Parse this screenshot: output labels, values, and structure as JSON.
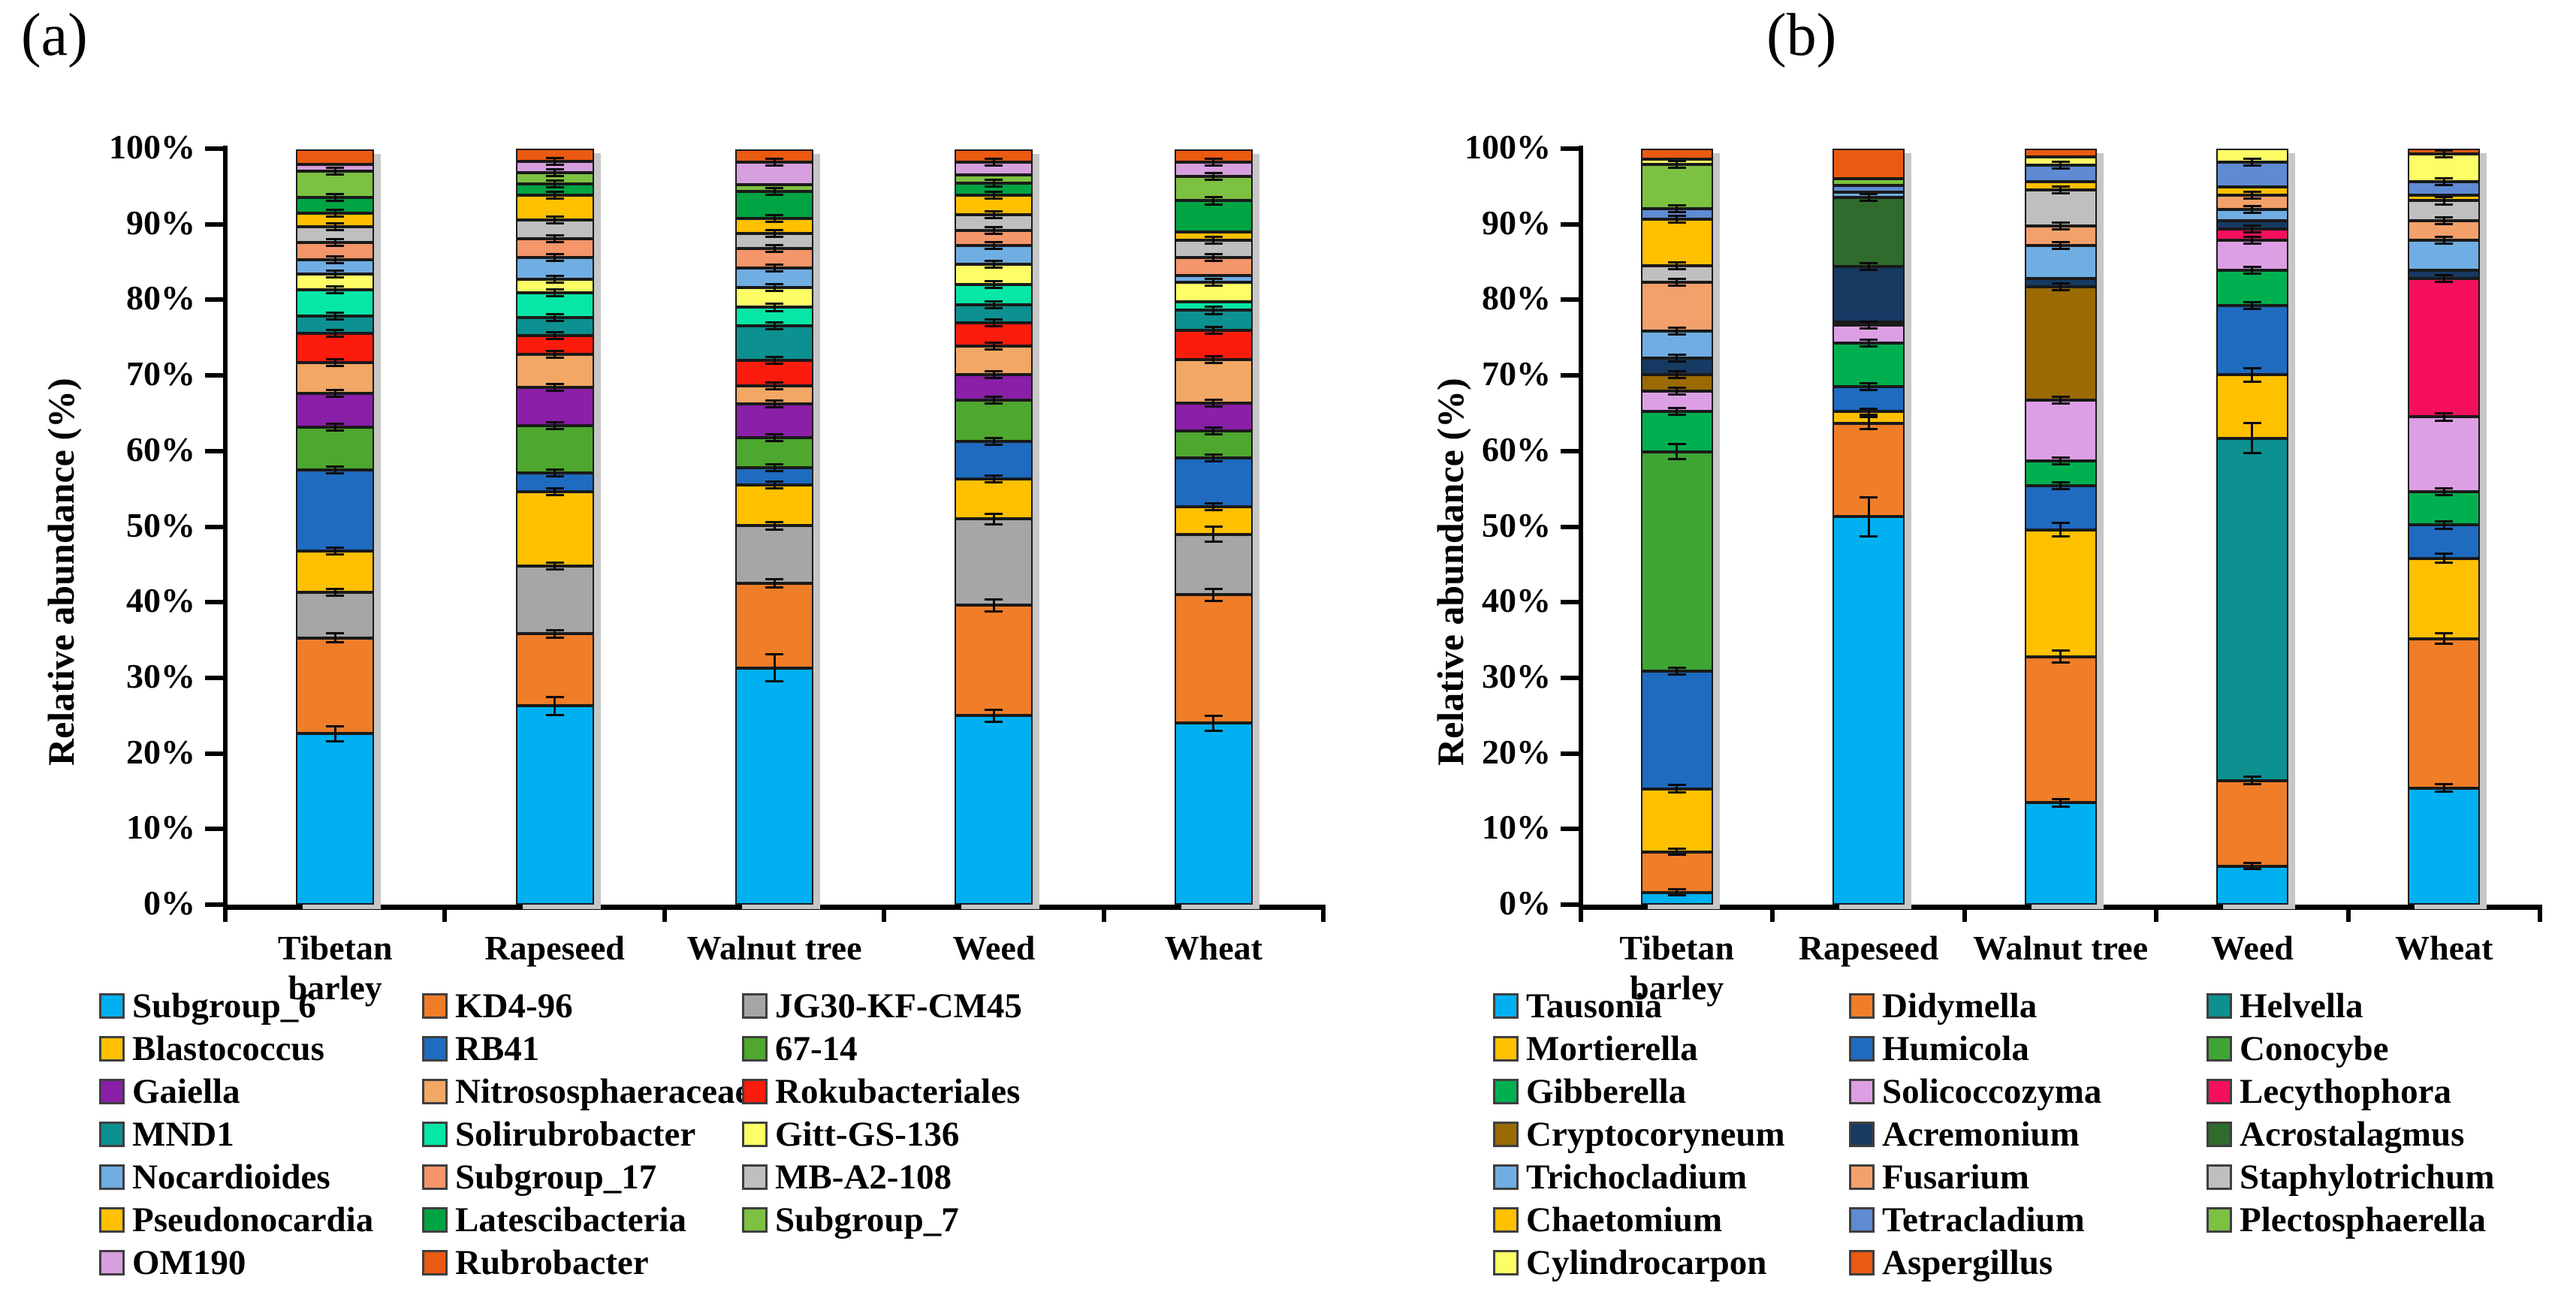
{
  "figure": {
    "background": "#ffffff",
    "error_bar_default_half_pct": 0.45
  },
  "chart_data": [
    {
      "type": "stacked-bar",
      "panel_label": "(a)",
      "ylabel": "Relative abundance (%)",
      "ylim": [
        0,
        100
      ],
      "y_tick_labels": [
        "0%",
        "10%",
        "20%",
        "30%",
        "40%",
        "50%",
        "60%",
        "70%",
        "80%",
        "90%",
        "100%"
      ],
      "categories": [
        "Tibetan\nbarley",
        "Rapeseed",
        "Walnut tree",
        "Weed",
        "Wheat"
      ],
      "series": [
        {
          "name": "Subgroup_6",
          "color": "#00B0F0",
          "values": [
            22.6,
            26.3,
            31.3,
            25.0,
            24.0
          ]
        },
        {
          "name": "KD4-96",
          "color": "#F07D28",
          "values": [
            12.7,
            9.5,
            11.2,
            14.6,
            17.0
          ]
        },
        {
          "name": "JG30-KF-CM45",
          "color": "#A6A6A6",
          "values": [
            6.0,
            9.0,
            7.6,
            11.4,
            8.0
          ]
        },
        {
          "name": "Blastococcus",
          "color": "#FFC000",
          "values": [
            5.5,
            9.8,
            5.4,
            5.3,
            3.6
          ]
        },
        {
          "name": "RB41",
          "color": "#1F6BC0",
          "values": [
            10.7,
            2.5,
            2.3,
            5.0,
            6.5
          ]
        },
        {
          "name": "67-14",
          "color": "#4EA72E",
          "values": [
            5.7,
            6.3,
            4.0,
            5.4,
            3.6
          ]
        },
        {
          "name": "Gaiella",
          "color": "#8A1FA8",
          "values": [
            4.4,
            5.0,
            4.4,
            3.4,
            3.6
          ]
        },
        {
          "name": "Nitrososphaeraceae",
          "color": "#F2A764",
          "values": [
            4.1,
            4.4,
            2.4,
            3.8,
            5.8
          ]
        },
        {
          "name": "Rokubacteriales",
          "color": "#FB1C0D",
          "values": [
            3.9,
            2.5,
            3.4,
            3.1,
            3.9
          ]
        },
        {
          "name": "MND1",
          "color": "#0D9090",
          "values": [
            2.3,
            2.4,
            4.6,
            2.3,
            2.6
          ]
        },
        {
          "name": "Solirubrobacter",
          "color": "#06E6A6",
          "values": [
            3.4,
            3.2,
            2.4,
            2.7,
            1.1
          ]
        },
        {
          "name": "Gitt-GS-136",
          "color": "#FDFD66",
          "values": [
            2.1,
            1.8,
            2.6,
            2.7,
            2.6
          ]
        },
        {
          "name": "Nocardioides",
          "color": "#70ADE2",
          "values": [
            1.9,
            2.9,
            2.6,
            2.5,
            0.9
          ]
        },
        {
          "name": "Subgroup_17",
          "color": "#F4956A",
          "values": [
            2.3,
            2.5,
            2.6,
            2.0,
            2.4
          ]
        },
        {
          "name": "MB-A2-108",
          "color": "#BFBFBF",
          "values": [
            2.1,
            2.5,
            2.0,
            2.1,
            2.3
          ]
        },
        {
          "name": "Pseudonocardia",
          "color": "#FFC000",
          "values": [
            1.8,
            3.2,
            2.0,
            2.5,
            1.1
          ]
        },
        {
          "name": "Latescibacteria",
          "color": "#00A443",
          "values": [
            2.0,
            1.5,
            3.5,
            1.6,
            4.1
          ]
        },
        {
          "name": "Subgroup_7",
          "color": "#7DC142",
          "values": [
            3.5,
            1.5,
            0.9,
            1.1,
            3.2
          ]
        },
        {
          "name": "OM190",
          "color": "#D79FDE",
          "values": [
            0.9,
            1.5,
            3.0,
            1.7,
            1.9
          ]
        },
        {
          "name": "Rubrobacter",
          "color": "#EA5A10",
          "values": [
            2.0,
            1.7,
            1.7,
            1.7,
            1.7
          ]
        }
      ],
      "error_overrides": {
        "Subgroup_6": [
          1.0,
          1.2,
          1.8,
          0.8,
          1.0
        ],
        "KD4-96": [
          0.6,
          0.5,
          0.5,
          0.8,
          0.8
        ],
        "JG30-KF-CM45": [
          0.45,
          0.45,
          0.45,
          0.7,
          1.0
        ]
      },
      "legend_rows": [
        [
          "Subgroup_6",
          "KD4-96",
          "JG30-KF-CM45"
        ],
        [
          "Blastococcus",
          "RB41",
          "67-14"
        ],
        [
          "Gaiella",
          "Nitrososphaeraceae",
          "Rokubacteriales"
        ],
        [
          "MND1",
          "Solirubrobacter",
          "Gitt-GS-136"
        ],
        [
          "Nocardioides",
          "Subgroup_17",
          "MB-A2-108"
        ],
        [
          "Pseudonocardia",
          "Latescibacteria",
          "Subgroup_7"
        ],
        [
          "OM190",
          "Rubrobacter"
        ]
      ]
    },
    {
      "type": "stacked-bar",
      "panel_label": "(b)",
      "ylabel": "Relative abundance (%)",
      "ylim": [
        0,
        100
      ],
      "y_tick_labels": [
        "0%",
        "10%",
        "20%",
        "30%",
        "40%",
        "50%",
        "60%",
        "70%",
        "80%",
        "90%",
        "100%"
      ],
      "categories": [
        "Tibetan\nbarley",
        "Rapeseed",
        "Walnut tree",
        "Weed",
        "Wheat"
      ],
      "series": [
        {
          "name": "Tausonia",
          "color": "#00B0F0",
          "values": [
            1.6,
            51.3,
            13.5,
            5.1,
            15.4
          ]
        },
        {
          "name": "Didymella",
          "color": "#F07D28",
          "values": [
            5.4,
            12.4,
            19.3,
            11.3,
            19.8
          ]
        },
        {
          "name": "Helvella",
          "color": "#0D9090",
          "values": [
            0.0,
            0.0,
            0.0,
            45.3,
            0.0
          ]
        },
        {
          "name": "Mortierella",
          "color": "#FFC000",
          "values": [
            8.3,
            1.5,
            16.8,
            8.4,
            10.6
          ]
        },
        {
          "name": "Humicola",
          "color": "#1F6BC0",
          "values": [
            15.6,
            3.3,
            5.8,
            9.1,
            4.4
          ]
        },
        {
          "name": "Conocybe",
          "color": "#3FA535",
          "values": [
            29.0,
            0.0,
            0.0,
            0.0,
            0.0
          ]
        },
        {
          "name": "Gibberella",
          "color": "#00B050",
          "values": [
            5.3,
            5.8,
            3.3,
            4.7,
            4.4
          ]
        },
        {
          "name": "Solicoccozyma",
          "color": "#DD9FE4",
          "values": [
            2.7,
            2.4,
            8.0,
            4.0,
            9.9
          ]
        },
        {
          "name": "Lecythophora",
          "color": "#F50F5C",
          "values": [
            0.0,
            0.0,
            0.0,
            1.5,
            18.3
          ]
        },
        {
          "name": "Cryptocoryneum",
          "color": "#9B6A02",
          "values": [
            2.2,
            0.4,
            15.0,
            0.0,
            0.0
          ]
        },
        {
          "name": "Acremonium",
          "color": "#173A63",
          "values": [
            2.2,
            7.3,
            1.1,
            1.1,
            1.1
          ]
        },
        {
          "name": "Acrostalagmus",
          "color": "#2F6B2D",
          "values": [
            0.0,
            9.1,
            0.0,
            0.0,
            0.0
          ]
        },
        {
          "name": "Trichocladium",
          "color": "#70ADE2",
          "values": [
            3.6,
            0.7,
            4.4,
            1.5,
            4.0
          ]
        },
        {
          "name": "Fusarium",
          "color": "#F4A06B",
          "values": [
            6.4,
            0.0,
            2.6,
            1.8,
            2.6
          ]
        },
        {
          "name": "Staphylotrichum",
          "color": "#BFBFBF",
          "values": [
            2.2,
            0.0,
            4.7,
            0.0,
            2.6
          ]
        },
        {
          "name": "Chaetomium",
          "color": "#FFC000",
          "values": [
            6.2,
            0.0,
            1.1,
            1.1,
            0.7
          ]
        },
        {
          "name": "Tetracladium",
          "color": "#5E8BD2",
          "values": [
            1.4,
            0.9,
            2.2,
            3.3,
            1.8
          ]
        },
        {
          "name": "Plectosphaerella",
          "color": "#7DC142",
          "values": [
            5.8,
            0.9,
            0.0,
            0.0,
            0.0
          ]
        },
        {
          "name": "Cylindrocarpon",
          "color": "#FDFD66",
          "values": [
            0.7,
            0.0,
            1.1,
            1.8,
            3.7
          ]
        },
        {
          "name": "Aspergillus",
          "color": "#EA5A10",
          "values": [
            1.4,
            4.0,
            1.1,
            0.0,
            0.7
          ]
        }
      ],
      "error_overrides": {
        "Tausonia": [
          0.4,
          2.6,
          0.5,
          0.4,
          0.5
        ],
        "Didymella": [
          0.4,
          0.8,
          0.8,
          0.5,
          0.7
        ],
        "Helvella": [
          0.4,
          0.4,
          0.4,
          2.0,
          0.4
        ],
        "Mortierella": [
          0.5,
          0.4,
          0.9,
          0.9,
          0.6
        ],
        "Conocybe": [
          1.0,
          0.4,
          0.4,
          0.4,
          0.4
        ]
      },
      "legend_rows": [
        [
          "Tausonia",
          "Didymella",
          "Helvella"
        ],
        [
          "Mortierella",
          "Humicola",
          "Conocybe"
        ],
        [
          "Gibberella",
          "Solicoccozyma",
          "Lecythophora"
        ],
        [
          "Cryptocoryneum",
          "Acremonium",
          "Acrostalagmus"
        ],
        [
          "Trichocladium",
          "Fusarium",
          "Staphylotrichum"
        ],
        [
          "Chaetomium",
          "Tetracladium",
          "Plectosphaerella"
        ],
        [
          "Cylindrocarpon",
          "Aspergillus"
        ]
      ]
    }
  ]
}
